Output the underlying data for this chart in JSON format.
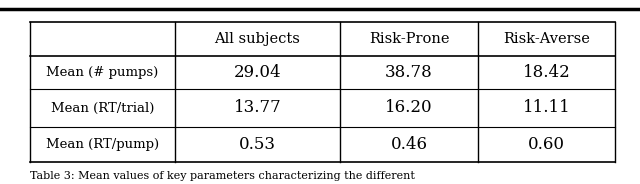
{
  "col_headers": [
    "",
    "All subjects",
    "Risk-Prone",
    "Risk-Averse"
  ],
  "rows": [
    [
      "Mean (# pumps)",
      "29.04",
      "38.78",
      "18.42"
    ],
    [
      "Mean (RT/trial)",
      "13.77",
      "16.20",
      "11.11"
    ],
    [
      "Mean (RT/pump)",
      "0.53",
      "0.46",
      "0.60"
    ]
  ],
  "figsize": [
    6.4,
    1.84
  ],
  "dpi": 100,
  "bg_color": "#ffffff",
  "header_fontsize": 10.5,
  "cell_fontsize": 12,
  "row_label_fontsize": 9.5,
  "caption_text": "Table 3: Mean values of key parameters characterizing the different"
}
